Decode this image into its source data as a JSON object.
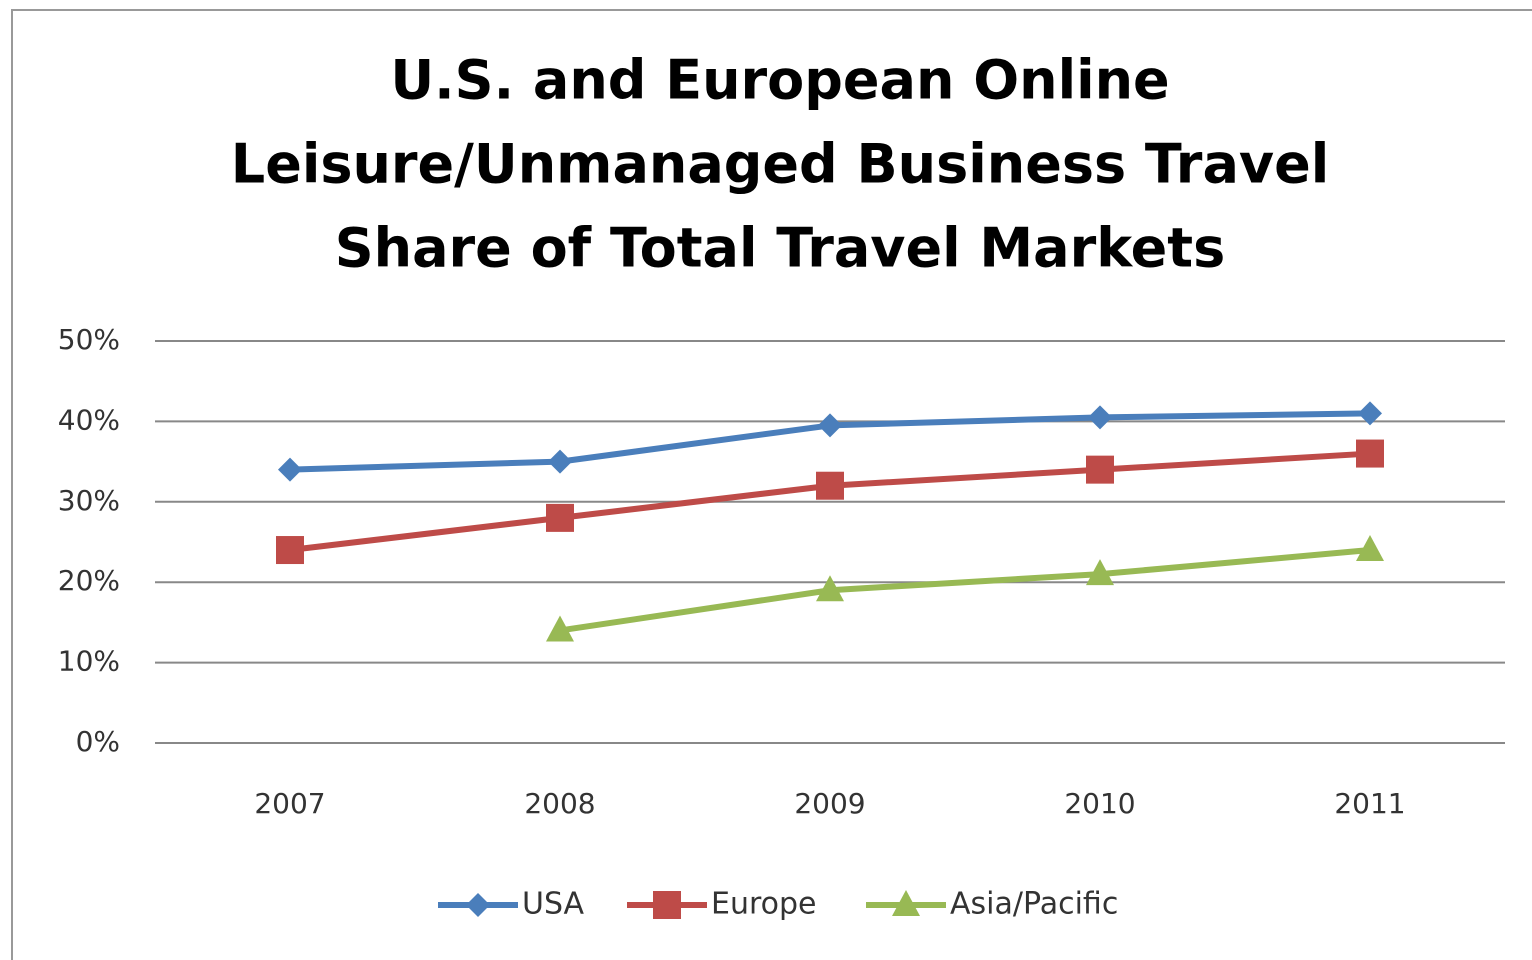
{
  "chart_data": {
    "type": "line",
    "title": [
      "U.S. and European Online",
      "Leisure/Unmanaged Business Travel",
      "Share of Total Travel Markets"
    ],
    "categories": [
      "2007",
      "2008",
      "2009",
      "2010",
      "2011"
    ],
    "series": [
      {
        "name": "USA",
        "color": "#4a7ebb",
        "marker": "diamond",
        "values": [
          34,
          35,
          39.5,
          40.5,
          41
        ]
      },
      {
        "name": "Europe",
        "color": "#be4b48",
        "marker": "square",
        "values": [
          24,
          28,
          32,
          34,
          36
        ]
      },
      {
        "name": "Asia/Pacific",
        "color": "#98b954",
        "marker": "triangle",
        "values": [
          null,
          14,
          19,
          21,
          24
        ]
      }
    ],
    "ylim": [
      0,
      50
    ],
    "yticks": [
      {
        "value": 0,
        "label": "0%"
      },
      {
        "value": 10,
        "label": "10%"
      },
      {
        "value": 20,
        "label": "20%"
      },
      {
        "value": 30,
        "label": "30%"
      },
      {
        "value": 40,
        "label": "40%"
      },
      {
        "value": 50,
        "label": "50%"
      }
    ],
    "grid": true,
    "legend": "bottom"
  }
}
